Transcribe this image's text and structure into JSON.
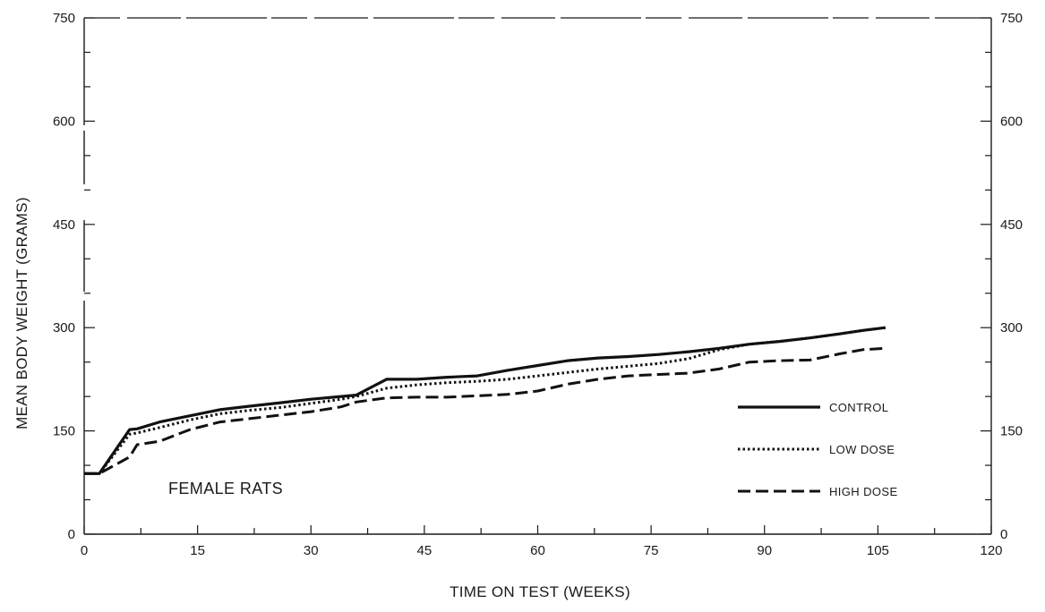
{
  "chart_data": {
    "type": "line",
    "title": "",
    "xlabel": "TIME ON TEST (WEEKS)",
    "ylabel": "MEAN BODY WEIGHT (GRAMS)",
    "xlim": [
      0,
      120
    ],
    "ylim": [
      0,
      750
    ],
    "x_ticks": [
      "0",
      "15",
      "30",
      "45",
      "60",
      "75",
      "90",
      "105",
      "120"
    ],
    "y_ticks_left": [
      "0",
      "150",
      "450",
      "600",
      "750"
    ],
    "y_ticks_right": [
      "0",
      "150",
      "300",
      "450",
      "600",
      "750"
    ],
    "y_tick_300_left": "300",
    "annotation": "FEMALE RATS",
    "legend_position": "right-middle",
    "grid": false,
    "series": [
      {
        "name": "CONTROL",
        "style": "solid",
        "color": "#111111",
        "x": [
          0,
          2,
          6,
          7,
          10,
          14,
          18,
          22,
          26,
          30,
          34,
          36,
          40,
          44,
          48,
          52,
          56,
          60,
          64,
          68,
          72,
          76,
          80,
          84,
          88,
          92,
          96,
          100,
          103,
          106
        ],
        "y": [
          88,
          88,
          152,
          153,
          163,
          172,
          181,
          186,
          191,
          196,
          200,
          202,
          225,
          225,
          228,
          230,
          238,
          245,
          252,
          256,
          258,
          261,
          265,
          270,
          276,
          280,
          285,
          291,
          296,
          300
        ]
      },
      {
        "name": "LOW DOSE",
        "style": "dotted",
        "color": "#111111",
        "x": [
          0,
          2,
          6,
          7,
          10,
          14,
          18,
          22,
          26,
          30,
          34,
          36,
          40,
          44,
          48,
          52,
          56,
          60,
          64,
          68,
          72,
          76,
          80,
          84,
          88,
          92,
          96,
          100,
          103,
          106
        ],
        "y": [
          88,
          88,
          145,
          147,
          155,
          166,
          175,
          180,
          184,
          190,
          196,
          200,
          212,
          217,
          220,
          222,
          225,
          230,
          235,
          240,
          244,
          248,
          255,
          268,
          276,
          280,
          285,
          291,
          296,
          300
        ]
      },
      {
        "name": "HIGH DOSE",
        "style": "dashed",
        "color": "#111111",
        "x": [
          0,
          2,
          6,
          7,
          10,
          14,
          18,
          22,
          26,
          30,
          34,
          36,
          40,
          44,
          48,
          52,
          56,
          60,
          64,
          68,
          72,
          76,
          80,
          84,
          88,
          92,
          96,
          100,
          103,
          106
        ],
        "y": [
          88,
          88,
          112,
          130,
          135,
          152,
          163,
          168,
          173,
          178,
          185,
          192,
          198,
          199,
          199,
          201,
          203,
          208,
          218,
          225,
          230,
          232,
          234,
          240,
          250,
          252,
          253,
          262,
          268,
          270
        ]
      }
    ]
  }
}
